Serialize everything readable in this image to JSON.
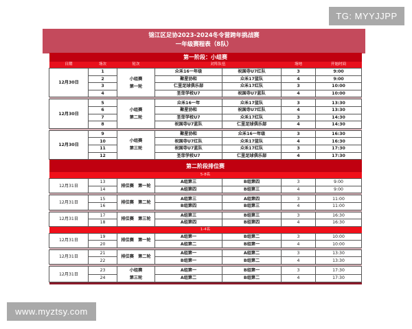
{
  "watermarks": {
    "top": "TG: MYYJJPP",
    "bottom": "www.myztsy.com"
  },
  "title": {
    "line1": "锦江区足协2023-2024冬令营跨年挑战赛",
    "line2": "一年级赛程表（8队）"
  },
  "columns": [
    "日期",
    "场次",
    "轮次",
    "对阵队伍",
    "场地",
    "开始时间"
  ],
  "phase1": {
    "title": "第一阶段：小组赛",
    "groups": [
      {
        "date": "12月30日",
        "round": [
          "小组赛",
          "第一轮"
        ],
        "matches": [
          [
            "1",
            "众禾16一年级",
            "祝国寺U7红队",
            "3",
            "9:00"
          ],
          [
            "2",
            "聚星协和",
            "众禾17蓝队",
            "4",
            "9:00"
          ],
          [
            "3",
            "仁里足球俱乐部",
            "众禾17红队",
            "3",
            "10:00"
          ],
          [
            "4",
            "圣菲学校U7",
            "祝国寺U7蓝队",
            "4",
            "10:00"
          ]
        ]
      },
      {
        "date": "12月30日",
        "round": [
          "小组赛",
          "第二轮"
        ],
        "matches": [
          [
            "5",
            "众禾16一年",
            "众禾17蓝队",
            "3",
            "13:30"
          ],
          [
            "6",
            "聚星协和",
            "祝国寺U7红队",
            "4",
            "13:30"
          ],
          [
            "7",
            "圣菲学校U7",
            "众禾17红队",
            "3",
            "14:30"
          ],
          [
            "8",
            "祝国寺U7蓝队",
            "仁里足球俱乐部",
            "4",
            "14:30"
          ]
        ]
      },
      {
        "date": "12月30日",
        "round": [
          "小组赛",
          "第三轮"
        ],
        "matches": [
          [
            "9",
            "聚星协和",
            "众禾16一年级",
            "3",
            "16:30"
          ],
          [
            "10",
            "祝国寺U7红队",
            "众禾17蓝队",
            "4",
            "16:30"
          ],
          [
            "11",
            "祝国寺U7蓝队",
            "众禾17红队",
            "3",
            "17:30"
          ],
          [
            "12",
            "圣菲学校U7",
            "仁里足球俱乐部",
            "4",
            "17:30"
          ]
        ]
      }
    ]
  },
  "phase2": {
    "title": "第二阶段排位赛",
    "sections": [
      {
        "label": "5-8名",
        "groups": [
          {
            "date": "12月31日",
            "round": [
              "排位赛　第一轮"
            ],
            "matches": [
              [
                "13",
                "A组第三",
                "B组第四",
                "3",
                "9:00"
              ],
              [
                "14",
                "A组第四",
                "B组第三",
                "4",
                "9:00"
              ]
            ]
          },
          {
            "date": "12月31日",
            "round": [
              "排位赛　第二轮"
            ],
            "matches": [
              [
                "15",
                "A组第三",
                "A组第四",
                "3",
                "11:00"
              ],
              [
                "16",
                "B组第四",
                "B组第三",
                "4",
                "11:00"
              ]
            ]
          },
          {
            "date": "12月31日",
            "round": [
              "排位赛　第三轮"
            ],
            "matches": [
              [
                "17",
                "A组第三",
                "B组第三",
                "3",
                "16:30"
              ],
              [
                "18",
                "A组第四",
                "B组第四",
                "4",
                "16:30"
              ]
            ]
          }
        ]
      },
      {
        "label": "1-4名",
        "groups": [
          {
            "date": "12月31日",
            "round": [
              "排位赛　第一轮"
            ],
            "matches": [
              [
                "19",
                "A组第一",
                "B组第二",
                "3",
                "10:00"
              ],
              [
                "20",
                "A组第二",
                "B组第一",
                "4",
                "10:00"
              ]
            ]
          },
          {
            "date": "12月31日",
            "round": [
              "排位赛　第二轮"
            ],
            "matches": [
              [
                "21",
                "A组第一",
                "A组第二",
                "3",
                "13:30"
              ],
              [
                "22",
                "B组第一",
                "B组第二",
                "4",
                "13:30"
              ]
            ]
          },
          {
            "date": "12月31日",
            "round": [
              "小组赛",
              "第三轮"
            ],
            "matches": [
              [
                "23",
                "A组第一",
                "B组第一",
                "3",
                "17:30"
              ],
              [
                "24",
                "A组第二",
                "B组第二",
                "4",
                "17:30"
              ]
            ]
          }
        ]
      }
    ]
  }
}
